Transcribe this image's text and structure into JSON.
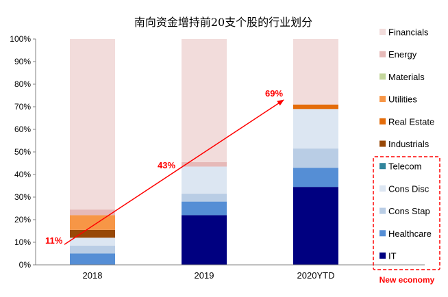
{
  "chart_data": {
    "type": "bar",
    "stacked": true,
    "title": "南向资金增持前20支个股的行业划分",
    "xlabel": "",
    "ylabel": "",
    "ylim": [
      0,
      100
    ],
    "y_ticks": [
      "0%",
      "10%",
      "20%",
      "30%",
      "40%",
      "50%",
      "60%",
      "70%",
      "80%",
      "90%",
      "100%"
    ],
    "categories": [
      "2018",
      "2019",
      "2020YTD"
    ],
    "series": [
      {
        "name": "IT",
        "color": "#000080",
        "values": [
          0,
          22,
          34.5
        ]
      },
      {
        "name": "Healthcare",
        "color": "#558ED5",
        "values": [
          5,
          6,
          8.5
        ]
      },
      {
        "name": "Cons Stap",
        "color": "#B9CDE5",
        "values": [
          3.5,
          3.5,
          8.5
        ]
      },
      {
        "name": "Cons Disc",
        "color": "#DCE6F2",
        "values": [
          3.5,
          12,
          17.5
        ]
      },
      {
        "name": "Telecom",
        "color": "#31859C",
        "values": [
          0,
          0,
          0
        ]
      },
      {
        "name": "Industrials",
        "color": "#984807",
        "values": [
          3.5,
          0,
          0
        ]
      },
      {
        "name": "Real Estate",
        "color": "#E46C0A",
        "values": [
          0,
          0,
          2
        ]
      },
      {
        "name": "Utilities",
        "color": "#F79646",
        "values": [
          6.5,
          0,
          0
        ]
      },
      {
        "name": "Materials",
        "color": "#C3D69B",
        "values": [
          0,
          0,
          0
        ]
      },
      {
        "name": "Energy",
        "color": "#E6B9B8",
        "values": [
          2.5,
          2,
          0
        ]
      },
      {
        "name": "Financials",
        "color": "#F2DCDB",
        "values": [
          75.5,
          54.5,
          29
        ]
      }
    ],
    "legend_order": [
      "Financials",
      "Energy",
      "Materials",
      "Utilities",
      "Real Estate",
      "Industrials",
      "Telecom",
      "Cons Disc",
      "Cons Stap",
      "Healthcare",
      "IT"
    ],
    "legend_position": "right",
    "annotations": [
      {
        "label": "11%",
        "category": "2018",
        "value": 11
      },
      {
        "label": "43%",
        "category": "2019",
        "value": 43
      },
      {
        "label": "69%",
        "category": "2020YTD",
        "value": 69
      }
    ],
    "arrow": {
      "from_value": 9,
      "to_value": 73,
      "color": "#FF0000"
    },
    "annotation_color": "#FF0000",
    "group_label": "New economy",
    "group_members": [
      "Telecom",
      "Cons Disc",
      "Cons Stap",
      "Healthcare",
      "IT"
    ]
  }
}
